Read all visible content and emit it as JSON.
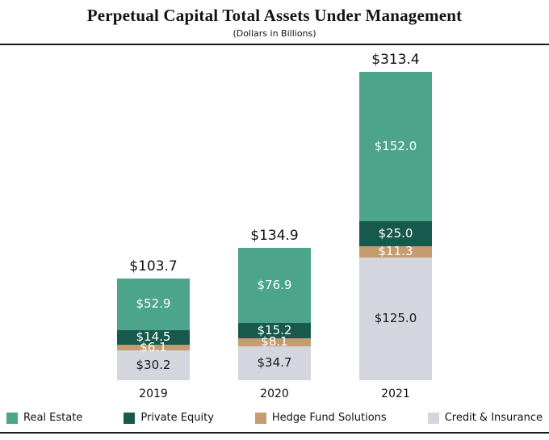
{
  "title": "Perpetual Capital Total Assets Under Management",
  "subtitle": "(Dollars in Billions)",
  "chart_data": {
    "type": "bar",
    "stacked": true,
    "title": "Perpetual Capital Total Assets Under Management",
    "subtitle": "(Dollars in Billions)",
    "categories": [
      "2019",
      "2020",
      "2021"
    ],
    "series": [
      {
        "name": "Real Estate",
        "color": "#4CA58A",
        "label_color": "#ffffff",
        "values": [
          52.9,
          76.9,
          152.0
        ],
        "labels": [
          "$52.9",
          "$76.9",
          "$152.0"
        ]
      },
      {
        "name": "Private Equity",
        "color": "#17594C",
        "label_color": "#ffffff",
        "values": [
          14.5,
          15.2,
          25.0
        ],
        "labels": [
          "$14.5",
          "$15.2",
          "$25.0"
        ]
      },
      {
        "name": "Hedge Fund Solutions",
        "color": "#C49C70",
        "label_color": "#ffffff",
        "values": [
          6.1,
          8.1,
          11.3
        ],
        "labels": [
          "$6.1",
          "$8.1",
          "$11.3"
        ]
      },
      {
        "name": "Credit & Insurance",
        "color": "#D4D5DE",
        "label_color": "#1a1a1a",
        "values": [
          30.2,
          34.7,
          125.0
        ],
        "labels": [
          "$30.2",
          "$34.7",
          "$125.0"
        ]
      }
    ],
    "totals": [
      103.7,
      134.9,
      313.4
    ],
    "total_labels": [
      "$103.7",
      "$134.9",
      "$313.4"
    ],
    "ylim": [
      0,
      330
    ],
    "grid": false,
    "legend_position": "bottom"
  }
}
